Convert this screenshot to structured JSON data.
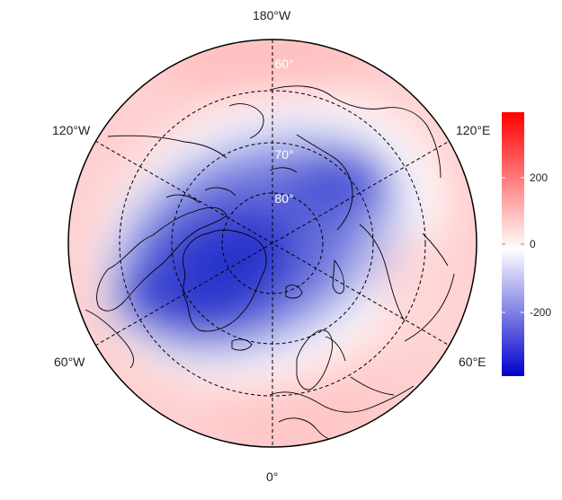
{
  "map": {
    "projection": "north-polar-stereographic",
    "fill_palette": [
      "#0000cc",
      "#ffffff",
      "#ff0000"
    ],
    "lon_labels": {
      "top": "180°W",
      "upper_left": "120°W",
      "upper_right": "120°E",
      "lower_left": "60°W",
      "lower_right": "60°E",
      "bottom": "0°"
    },
    "lat_labels": [
      "60°",
      "70°",
      "80°"
    ]
  },
  "colorbar": {
    "colors": [
      "#0000cc",
      "#ffffff",
      "#ff0000"
    ],
    "ticks": [
      "200",
      "0",
      "-200"
    ]
  }
}
